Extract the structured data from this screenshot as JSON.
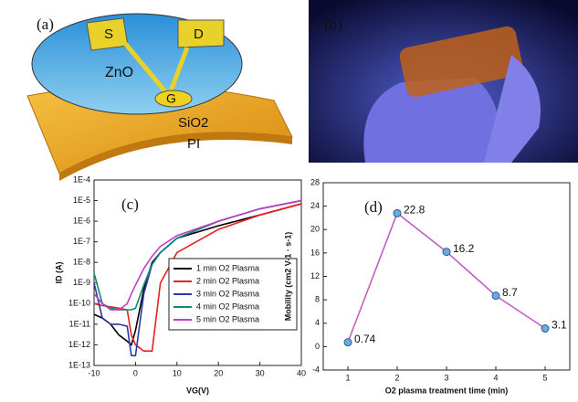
{
  "panels": {
    "a": {
      "label": "(a)",
      "source": "S",
      "drain": "D",
      "channel": "ZnO",
      "gate": "G",
      "dielectric": "SiO2",
      "substrate": "PI"
    },
    "b": {
      "label": "(b)"
    }
  },
  "chart_data": [
    {
      "type": "line",
      "panel_label": "(c)",
      "x_label": "VG(V)",
      "y_label": "ID (A)",
      "log_y": true,
      "x": [
        -10,
        -8,
        -6,
        -4,
        -2,
        -1,
        0,
        2,
        4,
        6,
        10,
        20,
        30,
        40
      ],
      "series": [
        {
          "name": "1 min O2 Plasma",
          "color": "#000000",
          "values": [
            3e-11,
            2e-11,
            1e-11,
            3e-12,
            1.5e-12,
            1e-12,
            5e-12,
            5e-10,
            1e-08,
            3e-08,
            1.5e-07,
            6e-07,
            2e-06,
            7e-06
          ]
        },
        {
          "name": "2 min O2 Plasma",
          "color": "#e8201e",
          "values": [
            1e-10,
            8e-11,
            7e-11,
            6e-11,
            5e-11,
            3e-12,
            1e-12,
            5e-13,
            5e-13,
            1e-09,
            3e-08,
            4e-07,
            2e-06,
            7e-06
          ]
        },
        {
          "name": "3 min O2 Plasma",
          "color": "#2b3aa0",
          "values": [
            1e-09,
            2e-11,
            1e-11,
            1e-11,
            8e-12,
            3e-13,
            3e-13,
            3e-10,
            8e-09,
            3e-08,
            1.5e-07,
            1e-06,
            4e-06,
            1e-05
          ]
        },
        {
          "name": "4 min O2 Plasma",
          "color": "#0f8a7a",
          "values": [
            3e-09,
            1e-10,
            6e-11,
            5e-11,
            5e-11,
            5e-11,
            6e-11,
            8e-10,
            8e-09,
            3e-08,
            1.5e-07,
            1e-06,
            4e-06,
            1e-05
          ]
        },
        {
          "name": "5 min O2 Plasma",
          "color": "#c03ec8",
          "values": [
            3e-10,
            1e-10,
            5e-11,
            5e-11,
            1e-10,
            3e-10,
            8e-10,
            5e-09,
            2e-08,
            6e-08,
            2e-07,
            1e-06,
            4e-06,
            1e-05
          ]
        }
      ],
      "xlim": [
        -10,
        40
      ],
      "xticks": [
        -10,
        0,
        10,
        20,
        30,
        40
      ],
      "ylim": [
        1e-13,
        0.0001
      ],
      "yticks": [
        {
          "value": 1e-13,
          "label": "1E-13"
        },
        {
          "value": 1e-12,
          "label": "1E-12"
        },
        {
          "value": 1e-11,
          "label": "1E-11"
        },
        {
          "value": 1e-10,
          "label": "1E-10"
        },
        {
          "value": 1e-09,
          "label": "1E-9"
        },
        {
          "value": 1e-08,
          "label": "1E-8"
        },
        {
          "value": 1e-07,
          "label": "1E-7"
        },
        {
          "value": 1e-06,
          "label": "1E-6"
        },
        {
          "value": 1e-05,
          "label": "1E-5"
        },
        {
          "value": 0.0001,
          "label": "1E-4"
        }
      ],
      "legend_position": "right"
    },
    {
      "type": "line",
      "panel_label": "(d)",
      "x_label": "O2 plasma treatment time (min)",
      "y_label": "Mobility (cm2 V-1 · s-1)",
      "x": [
        1,
        2,
        3,
        4,
        5
      ],
      "values": [
        0.74,
        22.8,
        16.2,
        8.7,
        3.1
      ],
      "color": "#c060c0",
      "marker_color": "#6fa8dc",
      "xlim": [
        0.5,
        5.5
      ],
      "xticks": [
        1,
        2,
        3,
        4,
        5
      ],
      "ylim": [
        -4,
        28
      ],
      "yticks": [
        -4,
        0,
        4,
        8,
        12,
        16,
        20,
        24,
        28
      ],
      "data_labels": true
    }
  ]
}
